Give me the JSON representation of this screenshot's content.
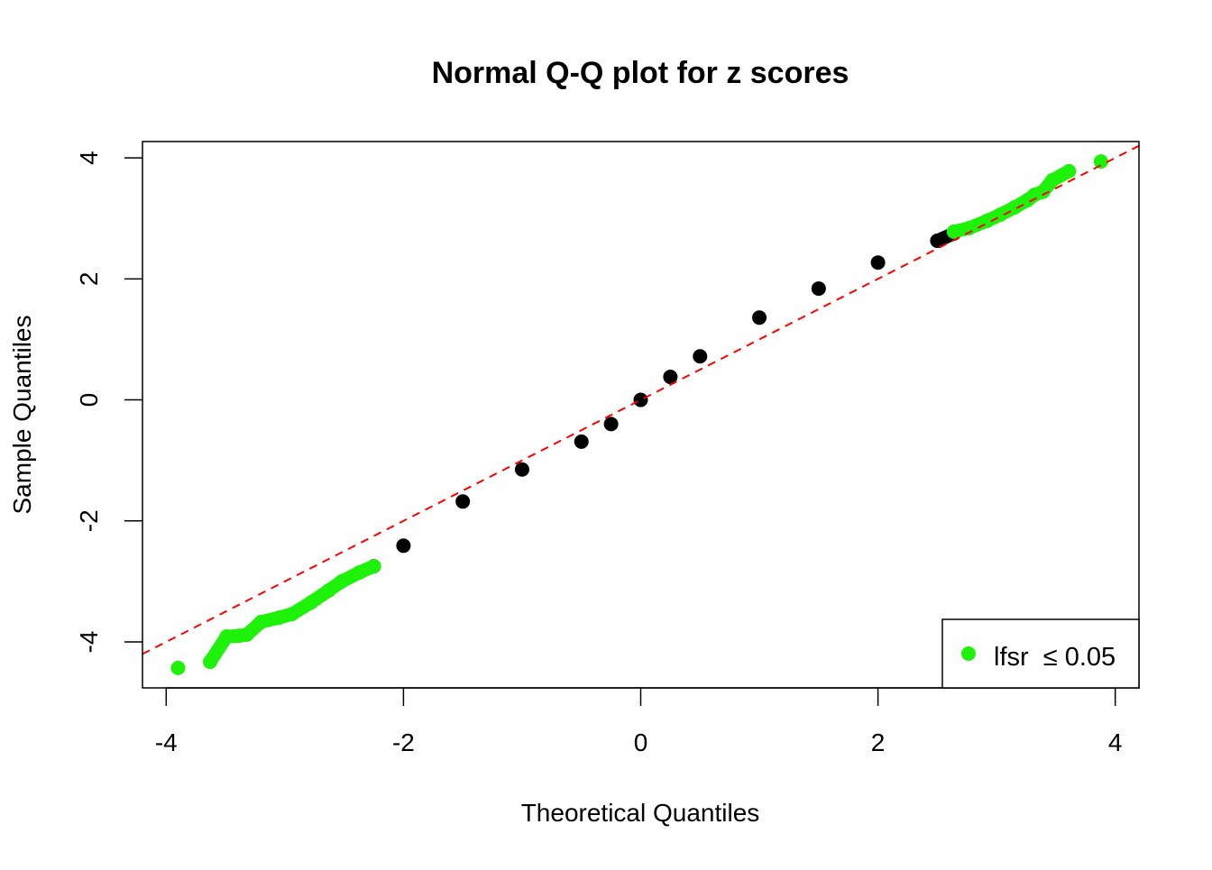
{
  "chart_data": {
    "type": "scatter",
    "title": "Normal Q-Q plot for z scores",
    "xlabel": "Theoretical Quantiles",
    "ylabel": "Sample Quantiles",
    "xlim": [
      -4.2,
      4.2
    ],
    "ylim": [
      -4.76,
      4.27
    ],
    "xticks": [
      -4,
      -2,
      0,
      2,
      4
    ],
    "yticks": [
      -4,
      -2,
      0,
      2,
      4
    ],
    "grid": false,
    "legend": {
      "placement": "bottom-right",
      "label": "lfsr  ≤ 0.05",
      "color": "#1EF20A"
    },
    "reference_line": {
      "intercept": 0,
      "slope": 1,
      "color": "#FF0000",
      "style": "dashed"
    },
    "series": [
      {
        "color": "#000000",
        "points": [
          [
            -2.25,
            -2.75
          ],
          [
            -2,
            -2.41
          ],
          [
            -1.5,
            -1.68
          ],
          [
            -1,
            -1.15
          ],
          [
            -0.5,
            -0.69
          ],
          [
            -0.25,
            -0.4
          ],
          [
            0,
            0
          ],
          [
            0.25,
            0.38
          ],
          [
            0.5,
            0.72
          ],
          [
            1,
            1.36
          ],
          [
            1.5,
            1.84
          ],
          [
            2,
            2.27
          ],
          [
            2.5,
            2.63
          ],
          [
            2.64,
            2.75
          ]
        ]
      },
      {
        "name": "lfsr  ≤ 0.05",
        "color": "#1EF20A",
        "points": [
          [
            -3.9,
            -4.43
          ],
          [
            -3.63,
            -4.33
          ],
          [
            -3.49,
            -3.91
          ],
          [
            -3.39,
            -3.9
          ],
          [
            -3.32,
            -3.88
          ],
          [
            -3.2,
            -3.67
          ],
          [
            -3.05,
            -3.6
          ],
          [
            -2.94,
            -3.54
          ],
          [
            -2.78,
            -3.35
          ],
          [
            -2.63,
            -3.15
          ],
          [
            -2.52,
            -3.0
          ],
          [
            -2.37,
            -2.85
          ],
          [
            -2.25,
            -2.75
          ],
          [
            2.64,
            2.78
          ],
          [
            2.77,
            2.84
          ],
          [
            2.92,
            2.96
          ],
          [
            3.03,
            3.06
          ],
          [
            3.15,
            3.18
          ],
          [
            3.26,
            3.3
          ],
          [
            3.32,
            3.39
          ],
          [
            3.39,
            3.44
          ],
          [
            3.47,
            3.63
          ],
          [
            3.61,
            3.78
          ],
          [
            3.88,
            3.94
          ]
        ]
      }
    ]
  }
}
